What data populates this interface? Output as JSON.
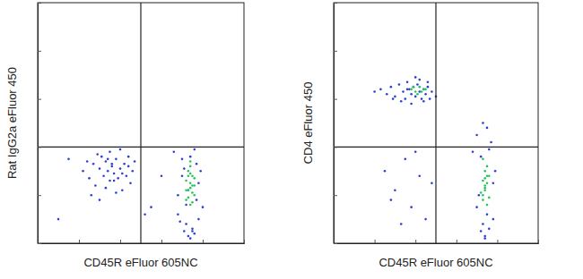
{
  "chart_data": [
    {
      "type": "scatter",
      "x_label": "CD45R eFluor 605NC",
      "y_label": "Rat IgG2a eFluor 450",
      "xlim": [
        0,
        100
      ],
      "ylim": [
        0,
        100
      ],
      "xticks": [
        0,
        20,
        40,
        60,
        80,
        100
      ],
      "yticks": [
        0,
        20,
        40,
        60,
        80,
        100
      ],
      "tick_labels": false,
      "gates": {
        "x": 50,
        "y": 40
      },
      "series": [
        {
          "color": "#2b3fd1",
          "marker": "dot",
          "x": [
            22,
            25,
            27,
            28,
            30,
            31,
            32,
            33,
            34,
            35,
            35,
            36,
            37,
            38,
            39,
            40,
            41,
            42,
            43,
            44,
            45,
            46,
            47,
            26,
            29,
            33,
            36,
            38,
            41,
            44,
            30,
            34,
            37,
            40,
            24,
            66,
            68,
            70,
            71,
            72,
            73,
            74,
            75,
            76,
            77,
            78,
            79,
            80,
            68,
            70,
            72,
            74,
            76,
            78,
            73,
            75,
            71,
            77,
            69,
            10,
            55,
            60,
            15,
            52
          ],
          "values": [
            30,
            27,
            33,
            24,
            31,
            36,
            28,
            34,
            30,
            26,
            38,
            32,
            29,
            35,
            27,
            31,
            22,
            33,
            28,
            36,
            25,
            30,
            34,
            20,
            37,
            23,
            33,
            21,
            29,
            32,
            18,
            35,
            26,
            39,
            34,
            38,
            12,
            35,
            5,
            8,
            3,
            36,
            6,
            4,
            33,
            10,
            30,
            15,
            20,
            28,
            16,
            2,
            39,
            25,
            22,
            5,
            31,
            18,
            9,
            10,
            15,
            28,
            35,
            12
          ]
        },
        {
          "color": "#25c45a",
          "marker": "dot",
          "x": [
            72,
            73,
            74,
            75,
            76,
            73,
            74,
            75,
            72,
            74,
            76,
            73,
            75,
            74,
            73,
            75,
            74,
            72,
            76,
            74
          ],
          "values": [
            18,
            22,
            25,
            28,
            20,
            30,
            16,
            24,
            26,
            32,
            27,
            19,
            21,
            23,
            28,
            17,
            29,
            22,
            24,
            34
          ]
        }
      ]
    },
    {
      "type": "scatter",
      "x_label": "CD45R eFluor 605NC",
      "y_label": "CD4 eFluor 450",
      "xlim": [
        0,
        100
      ],
      "ylim": [
        0,
        100
      ],
      "xticks": [
        0,
        20,
        40,
        60,
        80,
        100
      ],
      "yticks": [
        0,
        20,
        40,
        60,
        80,
        100
      ],
      "tick_labels": false,
      "gates": {
        "x": 50,
        "y": 40
      },
      "series": [
        {
          "color": "#2b3fd1",
          "marker": "dot",
          "x": [
            20,
            23,
            26,
            28,
            30,
            32,
            34,
            35,
            36,
            37,
            38,
            39,
            40,
            41,
            42,
            43,
            44,
            45,
            46,
            48,
            50,
            33,
            38,
            42,
            46,
            29,
            36,
            44,
            40,
            47,
            25,
            30,
            35,
            38,
            42,
            45,
            48,
            33,
            40,
            28,
            68,
            70,
            72,
            73,
            74,
            75,
            76,
            77,
            78,
            79,
            70,
            72,
            74,
            76,
            78,
            73,
            75,
            71
          ],
          "values": [
            63,
            64,
            62,
            65,
            61,
            66,
            63,
            60,
            67,
            64,
            62,
            65,
            61,
            66,
            63,
            60,
            64,
            62,
            65,
            63,
            61,
            59,
            58,
            68,
            67,
            60,
            64,
            59,
            69,
            60,
            30,
            22,
            35,
            15,
            28,
            10,
            25,
            8,
            38,
            18,
            38,
            45,
            5,
            8,
            3,
            48,
            6,
            42,
            10,
            30,
            15,
            36,
            2,
            39,
            25,
            50,
            12,
            20
          ]
        },
        {
          "color": "#25c45a",
          "marker": "dot",
          "x": [
            38,
            40,
            42,
            44,
            41,
            43,
            39,
            45,
            73,
            74,
            75,
            76,
            73,
            74,
            75,
            74,
            73,
            75,
            74,
            76,
            72,
            74,
            75,
            73
          ],
          "values": [
            64,
            63,
            65,
            64,
            62,
            63,
            65,
            64,
            18,
            22,
            25,
            28,
            20,
            30,
            16,
            24,
            26,
            32,
            27,
            19,
            21,
            23,
            28,
            35
          ]
        }
      ]
    }
  ]
}
